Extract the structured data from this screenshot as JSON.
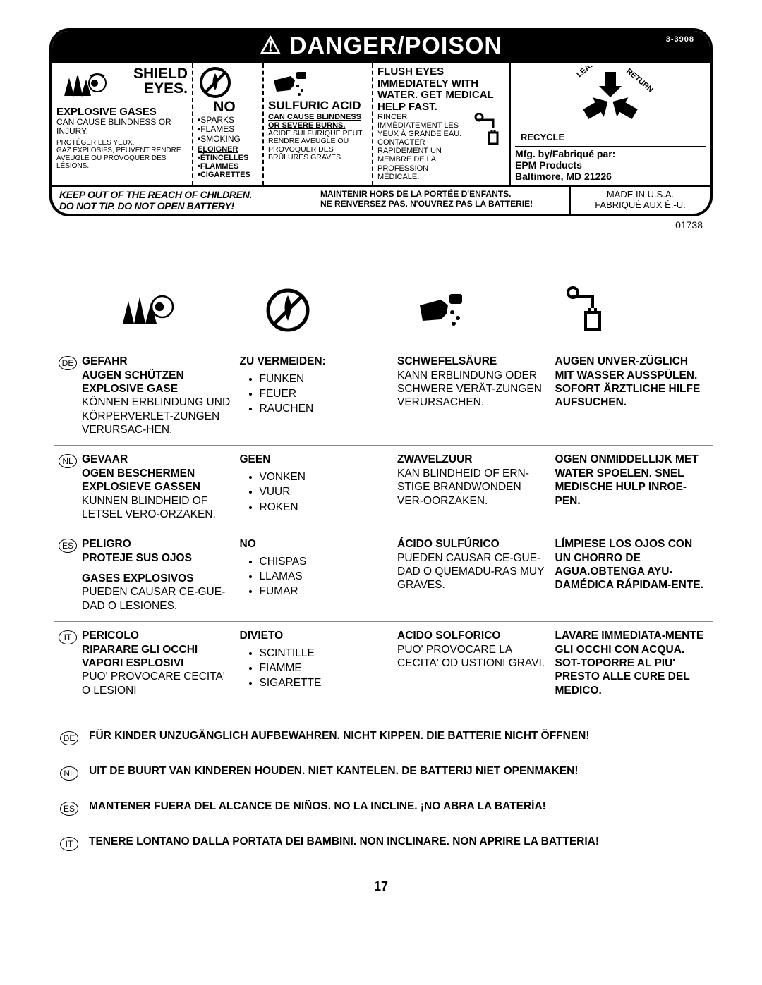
{
  "header": {
    "title": "⚠ DANGER/POISON",
    "part_number": "3-3908"
  },
  "main": {
    "col1": {
      "heading": "SHIELD EYES.",
      "subhead": "EXPLOSIVE GASES",
      "line1": "CAN CAUSE BLINDNESS OR INJURY.",
      "fr1": "PROTÉGER LES YEUX.",
      "fr2": "GAZ EXPLOSIFS, PEUVENT RENDRE AVEUGLE OU PROVOQUER DES LÉSIONS."
    },
    "col2": {
      "heading": "NO",
      "l1": "•SPARKS",
      "l2": "•FLAMES",
      "l3": "•SMOKING",
      "fr_head": "ÉLOIGNER",
      "fr1": "•ÉTINCELLES",
      "fr2": "•FLAMMES",
      "fr3": "•CIGARETTES"
    },
    "col3": {
      "heading": "SULFURIC ACID",
      "sub": "CAN CAUSE BLINDNESS OR SEVERE BURNS.",
      "fr1": "ACIDE SULFURIQUE PEUT RENDRE AVEUGLE OU PROVOQUER DES BRÛLURES GRAVES."
    },
    "col4": {
      "heading": "FLUSH EYES IMMEDIATELY WITH WATER. GET MEDICAL HELP FAST.",
      "fr1": "RINCER IMMÉDIATEMENT LES YEUX À GRANDE EAU. CONTACTER RAPIDEMENT UN MEMBRE DE LA PROFESSION MÉDICALE."
    },
    "col5": {
      "recycle_label": "RECYCLE",
      "mfg1": "Mfg. by/Fabriqué par:",
      "mfg2": "EPM Products",
      "mfg3": "Baltimore, MD 21226"
    }
  },
  "footer": {
    "left1": "KEEP OUT OF THE REACH OF CHILDREN.",
    "left2": "DO NOT TIP. DO NOT OPEN BATTERY!",
    "mid1": "MAINTENIR HORS DE LA PORTÉE D'ENFANTS.",
    "mid2": "NE RENVERSEZ PAS. N'OUVREZ PAS LA BATTERIE!",
    "right1": "MADE IN U.S.A.",
    "right2": "FABRIQUÉ AUX É.-U."
  },
  "doc_number": "01738",
  "langs": [
    {
      "code": "DE",
      "c1_bold": "GEFAHR\nAUGEN SCHÜTZEN\nEXPLOSIVE GASE",
      "c1_text": "KÖNNEN ERBLINDUNG UND KÖRPERVERLET-ZUNGEN VERURSAC-HEN.",
      "c2_head": "ZU VERMEIDEN:",
      "c2_items": [
        "FUNKEN",
        "FEUER",
        "RAUCHEN"
      ],
      "c3_head": "SCHWEFELSÄURE",
      "c3_text": "KANN ERBLINDUNG ODER SCHWERE VERÄT-ZUNGEN VERURSACHEN.",
      "c4_bold": "AUGEN UNVER-ZÜGLICH MIT WASSER AUSSPÜLEN.  SOFORT ÄRZTLICHE HILFE AUFSUCHEN."
    },
    {
      "code": "NL",
      "c1_bold": "GEVAAR\nOGEN BESCHERMEN\nEXPLOSIEVE GASSEN",
      "c1_text": "KUNNEN BLINDHEID OF LETSEL VERO-ORZAKEN.",
      "c2_head": "GEEN",
      "c2_items": [
        "VONKEN",
        "VUUR",
        "ROKEN"
      ],
      "c3_head": "ZWAVELZUUR",
      "c3_text": "KAN BLINDHEID OF ERN-STIGE BRANDWONDEN VER-OORZAKEN.",
      "c4_bold": "OGEN ONMIDDELLIJK MET WATER SPOELEN. SNEL MEDISCHE HULP INROE-PEN."
    },
    {
      "code": "ES",
      "c1_bold": "PELIGRO\nPROTEJE SUS OJOS",
      "c1_bold2": "GASES EXPLOSIVOS",
      "c1_text": "PUEDEN CAUSAR CE-GUE-DAD O LESIONES.",
      "c2_head": "NO",
      "c2_items": [
        "CHISPAS",
        "LLAMAS",
        "FUMAR"
      ],
      "c3_head": "ÁCIDO SULFÚRICO",
      "c3_text": "PUEDEN CAUSAR CE-GUE-DAD O QUEMADU-RAS MUY GRAVES.",
      "c4_bold": "LÍMPIESE LOS OJOS CON UN CHORRO DE AGUA.OBTENGA AYU-DAMÉDICA RÁPIDAM-ENTE."
    },
    {
      "code": "IT",
      "c1_bold": "PERICOLO\nRIPARARE GLI OCCHI\nVAPORI ESPLOSIVI",
      "c1_text": "PUO' PROVOCARE CECITA' O LESIONI",
      "c2_head": "DIVIETO",
      "c2_items": [
        "SCINTILLE",
        "FIAMME",
        "SIGARETTE"
      ],
      "c3_head": "ACIDO SOLFORICO",
      "c3_text": "PUO' PROVOCARE LA CECITA' OD USTIONI GRAVI.",
      "c4_bold": "LAVARE IMMEDIATA-MENTE GLI OCCHI CON ACQUA. SOT-TOPORRE AL PIU' PRESTO ALLE CURE DEL MEDICO."
    }
  ],
  "bottom_warnings": [
    {
      "code": "DE",
      "text": "FÜR KINDER UNZUGÄNGLICH AUFBEWAHREN. NICHT KIPPEN. DIE BATTERIE NICHT ÖFFNEN!"
    },
    {
      "code": "NL",
      "text": "UIT DE BUURT VAN KINDEREN HOUDEN. NIET KANTELEN. DE BATTERIJ NIET OPENMAKEN!"
    },
    {
      "code": "ES",
      "text": "MANTENER  FUERA DEL ALCANCE DE NIÑOS. NO LA INCLINE. ¡NO ABRA LA BATERÍA!"
    },
    {
      "code": "IT",
      "text": "TENERE LONTANO DALLA PORTATA DEI BAMBINI. NON INCLINARE. NON APRIRE LA BATTERIA!"
    }
  ],
  "page_number": "17"
}
